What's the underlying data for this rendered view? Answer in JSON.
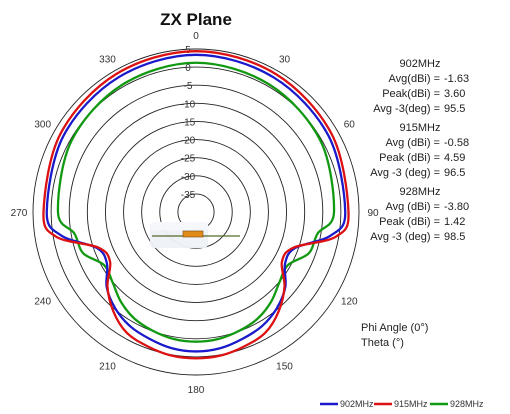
{
  "chart_data": {
    "type": "polar-line",
    "title": "ZX Plane",
    "angle_ticks": [
      "0",
      "30",
      "60",
      "90",
      "120",
      "150",
      "180",
      "210",
      "240",
      "270",
      "300",
      "330"
    ],
    "radial_ticks": [
      "5",
      "0",
      "-5",
      "-10",
      "-15",
      "-20",
      "-25",
      "-30",
      "-35"
    ],
    "radial_range_dbi": [
      -40,
      5
    ],
    "series": [
      {
        "name": "902MHz",
        "color": "#1a1acc",
        "angles_deg": [
          0,
          30,
          60,
          90,
          100,
          110,
          120,
          130,
          140,
          150,
          160,
          170,
          180,
          190,
          200,
          210,
          220,
          230,
          240,
          250,
          260,
          270,
          300,
          330
        ],
        "values_dbi": [
          3.4,
          2.9,
          2.2,
          1.2,
          -2.3,
          -10.9,
          -11.6,
          -7.8,
          -5.3,
          -3.6,
          -2.7,
          -1.8,
          -1.5,
          -1.8,
          -2.7,
          -3.6,
          -5.3,
          -7.8,
          -11.6,
          -10.9,
          -2.3,
          1.2,
          2.2,
          2.9
        ]
      },
      {
        "name": "915MHz",
        "color": "#dd1111",
        "angles_deg": [
          0,
          30,
          60,
          90,
          100,
          110,
          120,
          130,
          140,
          150,
          160,
          170,
          180,
          190,
          200,
          210,
          220,
          230,
          240,
          250,
          260,
          270,
          300,
          330
        ],
        "values_dbi": [
          4.4,
          4.0,
          3.2,
          2.1,
          -0.8,
          -11.3,
          -12.6,
          -8.1,
          -4.4,
          -1.6,
          -0.6,
          0.2,
          0.4,
          0.2,
          -0.6,
          -1.6,
          -4.4,
          -8.1,
          -12.6,
          -11.3,
          -0.8,
          2.1,
          3.2,
          4.0
        ]
      },
      {
        "name": "928MHz",
        "color": "#119911",
        "angles_deg": [
          0,
          30,
          60,
          90,
          100,
          110,
          120,
          130,
          140,
          150,
          160,
          170,
          180,
          190,
          200,
          210,
          220,
          230,
          240,
          250,
          260,
          270,
          300,
          330
        ],
        "values_dbi": [
          1.2,
          0.6,
          -0.4,
          -1.9,
          -5.9,
          -6.8,
          -10.7,
          -9.9,
          -7.7,
          -6.0,
          -5.1,
          -4.4,
          -4.2,
          -4.4,
          -5.1,
          -6.0,
          -7.7,
          -9.9,
          -10.7,
          -6.8,
          -5.9,
          -1.9,
          -0.4,
          0.6
        ]
      }
    ]
  },
  "stats": [
    {
      "freq": "902MHz",
      "lines": [
        {
          "label": "Avg(dBi) =",
          "value": "-1.63"
        },
        {
          "label": "Peak(dBi) =",
          "value": "3.60"
        },
        {
          "label": "Avg -3(deg) =",
          "value": "95.5"
        }
      ]
    },
    {
      "freq": "915MHz",
      "lines": [
        {
          "label": "Avg (dBi) =",
          "value": "-0.58"
        },
        {
          "label": "Peak (dBi) =",
          "value": "4.59"
        },
        {
          "label": "Avg -3 (deg) =",
          "value": "96.5"
        }
      ]
    },
    {
      "freq": "928MHz",
      "lines": [
        {
          "label": "Avg (dBi) =",
          "value": "-3.80"
        },
        {
          "label": "Peak (dBi) =",
          "value": "1.42"
        },
        {
          "label": "Avg -3 (deg) =",
          "value": "98.5"
        }
      ]
    }
  ],
  "axis_notes": [
    "Phi Angle (0°)",
    "Theta (°)"
  ],
  "legend": [
    "902MHz",
    "915MHz",
    "928MHz"
  ]
}
